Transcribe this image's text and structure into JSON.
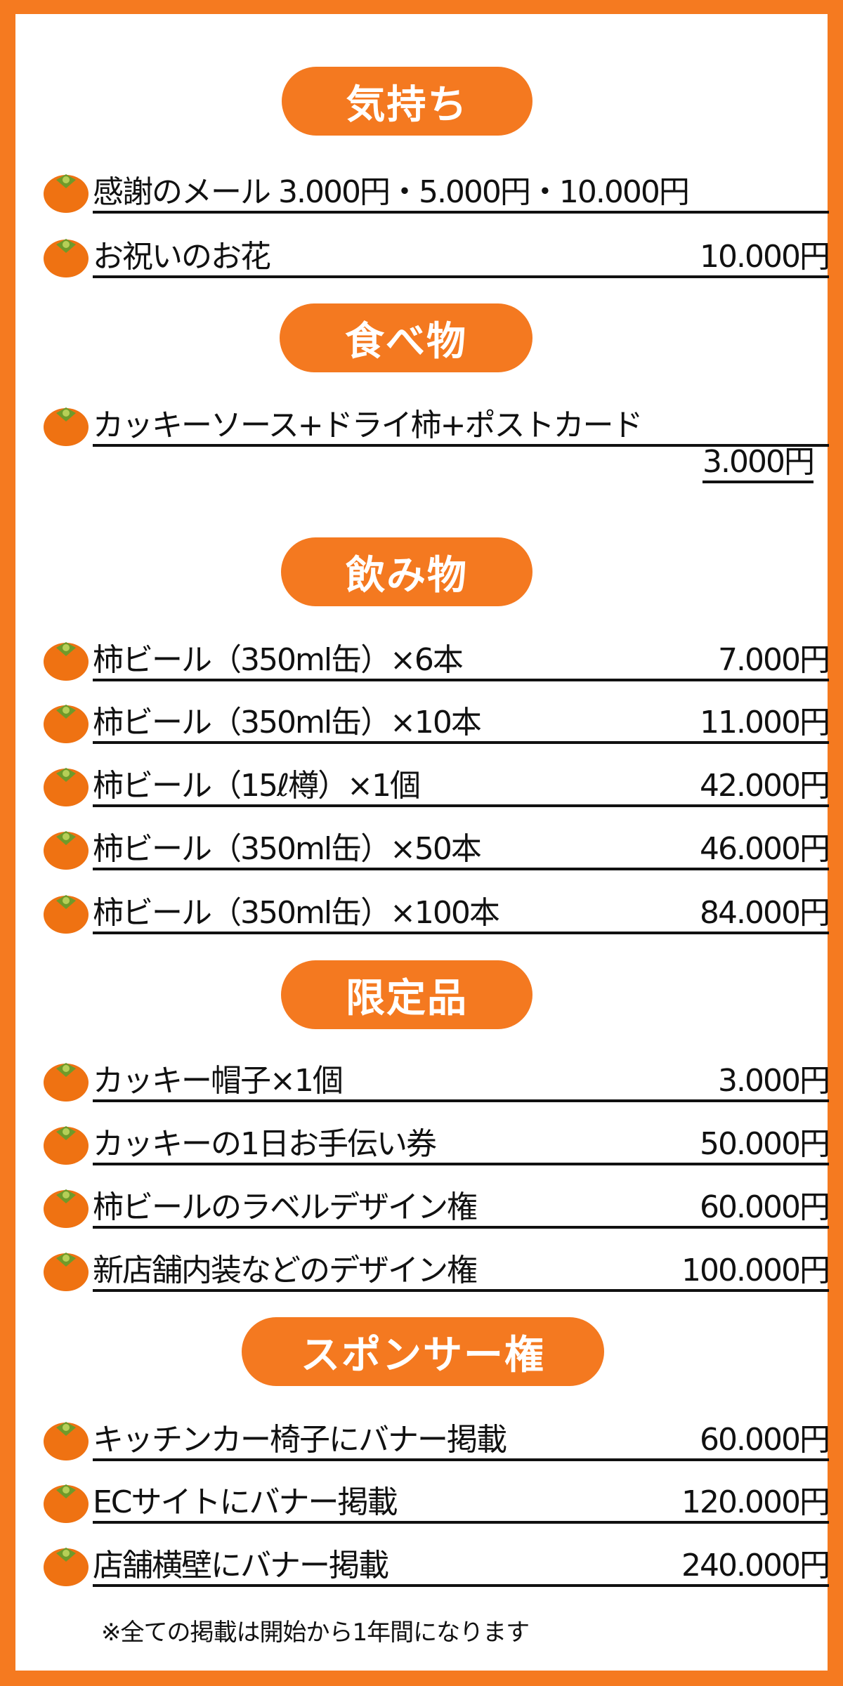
{
  "colors": {
    "border": "#f57a20",
    "pill": "#f47920",
    "persimmon": "#ef7212",
    "calyx": "#6f9a2a"
  },
  "icon": "persimmon-icon",
  "sections": [
    {
      "title": "気持ち",
      "items": [
        {
          "name": "感謝のメール 3.000円・5.000円・10.000円",
          "price": ""
        },
        {
          "name": "お祝いのお花",
          "price": "10.000円"
        }
      ]
    },
    {
      "title": "食べ物",
      "items": [
        {
          "name": "カッキーソース+ドライ柿+ポストカード",
          "price": "3.000円"
        }
      ]
    },
    {
      "title": "飲み物",
      "items": [
        {
          "name": "柿ビール（350ml缶）×6本",
          "price": "7.000円"
        },
        {
          "name": "柿ビール（350ml缶）×10本",
          "price": "11.000円"
        },
        {
          "name": "柿ビール（15ℓ樽）×1個",
          "price": "42.000円"
        },
        {
          "name": "柿ビール（350ml缶）×50本",
          "price": "46.000円"
        },
        {
          "name": "柿ビール（350ml缶）×100本",
          "price": "84.000円"
        }
      ]
    },
    {
      "title": "限定品",
      "items": [
        {
          "name": "カッキー帽子×1個",
          "price": "3.000円"
        },
        {
          "name": "カッキーの1日お手伝い券",
          "price": "50.000円"
        },
        {
          "name": "柿ビールのラベルデザイン権",
          "price": "60.000円"
        },
        {
          "name": "新店舗内装などのデザイン権",
          "price": "100.000円"
        }
      ]
    },
    {
      "title": "スポンサー権",
      "items": [
        {
          "name": "キッチンカー椅子にバナー掲載",
          "price": "60.000円"
        },
        {
          "name": "ECサイトにバナー掲載",
          "price": "120.000円"
        },
        {
          "name": "店舗横壁にバナー掲載",
          "price": "240.000円"
        }
      ]
    }
  ],
  "note": "※全ての掲載は開始から1年間になります"
}
